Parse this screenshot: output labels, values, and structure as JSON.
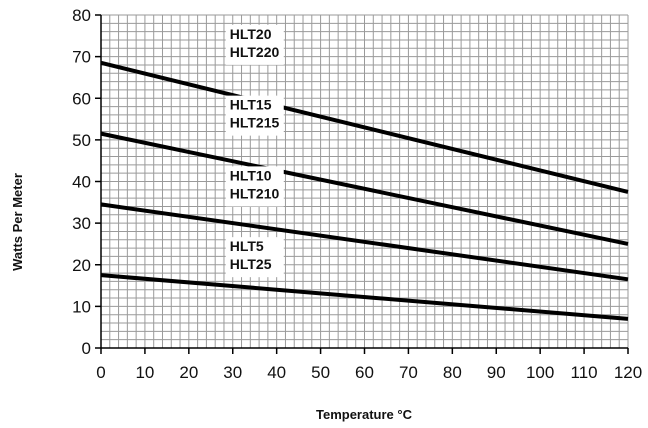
{
  "chart_data": {
    "type": "line",
    "title": "",
    "xlabel": "Temperature °C",
    "ylabel": "Watts Per Meter",
    "xlim": [
      0,
      120
    ],
    "ylim": [
      0,
      80
    ],
    "x_ticks": [
      0,
      10,
      20,
      30,
      40,
      50,
      60,
      70,
      80,
      90,
      100,
      110,
      120
    ],
    "y_ticks": [
      0,
      10,
      20,
      30,
      40,
      50,
      60,
      70,
      80
    ],
    "grid": true,
    "grid_minor_x": 2,
    "grid_minor_y": 2,
    "colors": {
      "line": "#000000",
      "grid": "#9a9a9a",
      "axis": "#000000"
    },
    "series": [
      {
        "labels": [
          "HLT20",
          "HLT220"
        ],
        "x": [
          0,
          120
        ],
        "y": [
          68.5,
          37.5
        ],
        "label_at": [
          30,
          68.5
        ]
      },
      {
        "labels": [
          "HLT15",
          "HLT215"
        ],
        "x": [
          0,
          120
        ],
        "y": [
          51.5,
          25
        ],
        "label_at": [
          30,
          51.5
        ]
      },
      {
        "labels": [
          "HLT10",
          "HLT210"
        ],
        "x": [
          0,
          120
        ],
        "y": [
          34.5,
          16.5
        ],
        "label_at": [
          30,
          34.5
        ]
      },
      {
        "labels": [
          "HLT5",
          "HLT25"
        ],
        "x": [
          0,
          120
        ],
        "y": [
          17.5,
          7
        ],
        "label_at": [
          30,
          17.5
        ]
      }
    ]
  }
}
